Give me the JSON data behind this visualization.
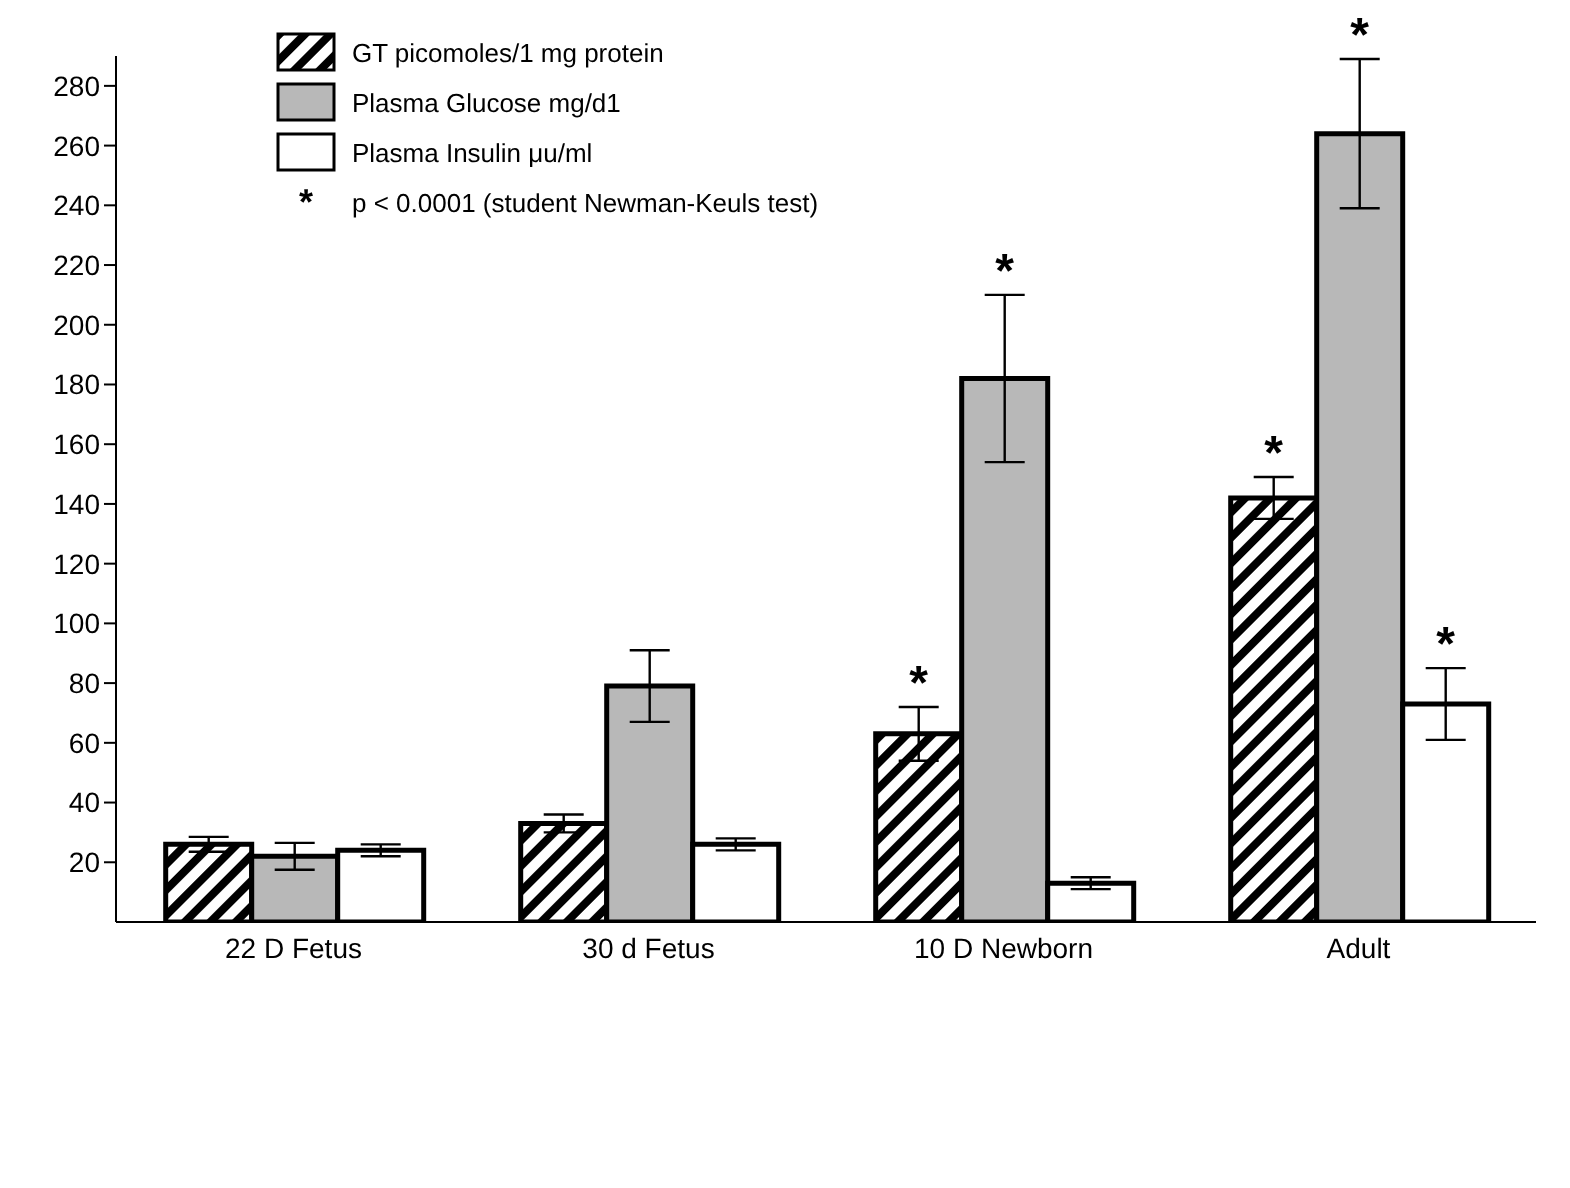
{
  "chart_data": {
    "type": "bar",
    "categories": [
      "22 D Fetus",
      "30 d Fetus",
      "10 D Newborn",
      "Adult"
    ],
    "series": [
      {
        "name": "GT picomoles/1 mg protein",
        "color": "#000000",
        "values": [
          26,
          33,
          63,
          142
        ],
        "errors": [
          2.5,
          3,
          9,
          7
        ]
      },
      {
        "name": "Plasma Glucose mg/d1",
        "color": "#b8b8b8",
        "values": [
          22,
          79,
          182,
          264
        ],
        "errors": [
          4.5,
          12,
          28,
          25
        ]
      },
      {
        "name": "Plasma Insulin μu/ml",
        "color": "#ffffff",
        "values": [
          24,
          26,
          13,
          73
        ],
        "errors": [
          2,
          2,
          2,
          12
        ]
      }
    ],
    "ylim": [
      0,
      290
    ],
    "yticks": [
      20,
      40,
      60,
      80,
      100,
      120,
      140,
      160,
      180,
      200,
      220,
      240,
      260,
      280
    ],
    "grid": false,
    "legend": "top left",
    "annotations": [
      "p < 0.0001 (student Newman-Keuls test)",
      {
        "text": "*",
        "y": 63
      },
      {
        "text": "*",
        "x": "10 D Newborn",
        "y": 182
      },
      {
        "text": "*",
        "y": 142
      },
      {
        "text": "*",
        "x": "Adult",
        "y": 264
      },
      {
        "text": "*",
        "y": 73
      }
    ]
  }
}
